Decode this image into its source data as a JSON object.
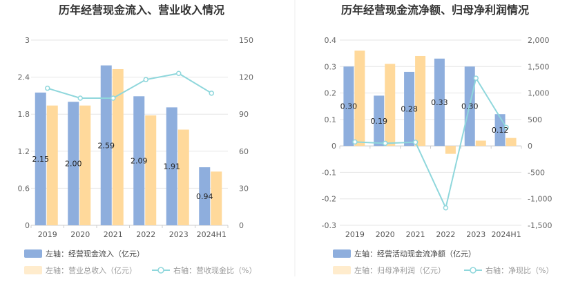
{
  "colors": {
    "bar_blue": "#8eaedd",
    "bar_orange": "#ffd99b",
    "line_teal": "#8fd7dc",
    "grid": "#e6e6e6",
    "axis": "#cccccc",
    "legend_active_text": "#444444",
    "legend_faded_text": "#999999",
    "divider": "#eeeeee"
  },
  "chart_data": [
    {
      "type": "bar",
      "title": "历年经营现金流入、营业收入情况",
      "categories": [
        "2019",
        "2020",
        "2021",
        "2022",
        "2023",
        "2024H1"
      ],
      "left_axis": {
        "ylim": [
          0,
          3
        ],
        "ticks": [
          "0",
          "0.6",
          "1.2",
          "1.8",
          "2.4",
          "3"
        ]
      },
      "right_axis": {
        "ylim": [
          0,
          150
        ],
        "ticks": [
          "0",
          "30",
          "60",
          "90",
          "120",
          "150"
        ]
      },
      "grid": true,
      "legend_position": "bottom",
      "series": [
        {
          "name": "左轴：经营现金流入（亿元）",
          "axis": "left",
          "kind": "bar",
          "values": [
            2.15,
            2.0,
            2.59,
            2.09,
            1.91,
            0.94
          ],
          "labels": [
            "2.15",
            "2.00",
            "2.59",
            "2.09",
            "1.91",
            "0.94"
          ]
        },
        {
          "name": "左轴：营业总收入（亿元）",
          "axis": "left",
          "kind": "bar",
          "values": [
            1.94,
            1.94,
            2.53,
            1.78,
            1.55,
            0.87
          ]
        },
        {
          "name": "右轴：营收现金比（%）",
          "axis": "right",
          "kind": "line",
          "values": [
            111,
            103,
            103,
            118,
            123,
            107
          ]
        }
      ]
    },
    {
      "type": "bar",
      "title": "历年经营现金流净额、归母净利润情况",
      "categories": [
        "2019",
        "2020",
        "2021",
        "2022",
        "2023",
        "2024H1"
      ],
      "left_axis": {
        "ylim": [
          -0.3,
          0.4
        ],
        "ticks": [
          "-0.3",
          "-0.2",
          "-0.1",
          "0",
          "0.1",
          "0.2",
          "0.3",
          "0.4"
        ]
      },
      "right_axis": {
        "ylim": [
          -1500,
          2000
        ],
        "ticks": [
          "-1,500",
          "-1,000",
          "-500",
          "0",
          "500",
          "1,000",
          "1,500",
          "2,000"
        ]
      },
      "grid": true,
      "legend_position": "bottom",
      "series": [
        {
          "name": "左轴：经营活动现金流净额（亿元）",
          "axis": "left",
          "kind": "bar",
          "values": [
            0.3,
            0.19,
            0.28,
            0.33,
            0.3,
            0.12
          ],
          "labels": [
            "0.30",
            "0.19",
            "0.28",
            "0.33",
            "0.30",
            "0.12"
          ]
        },
        {
          "name": "左轴：归母净利润（亿元）",
          "axis": "left",
          "kind": "bar",
          "values": [
            0.36,
            0.31,
            0.34,
            -0.03,
            0.02,
            0.03
          ]
        },
        {
          "name": "右轴：净现比（%）",
          "axis": "right",
          "kind": "line",
          "values": [
            75,
            50,
            70,
            -1170,
            1280,
            350
          ]
        }
      ]
    }
  ]
}
